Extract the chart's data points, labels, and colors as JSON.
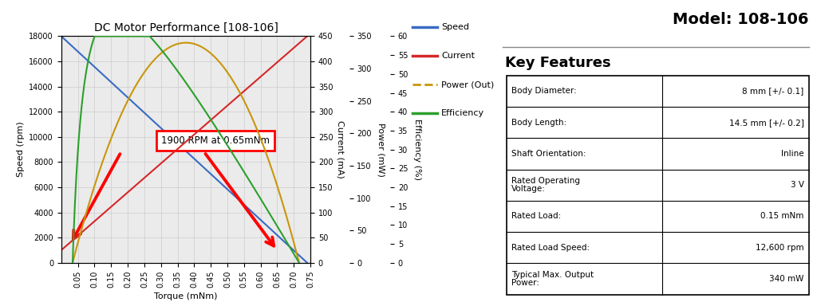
{
  "title": "DC Motor Performance [108-106]",
  "model": "Model: 108-106",
  "key_features_title": "Key Features",
  "xlabel": "Torque (mNm)",
  "ylabel_speed": "Speed (rpm)",
  "ylabel_current": "Current (mA)",
  "ylabel_power": "Power (mW)",
  "ylabel_efficiency": "Efficiency (%)",
  "torque_stall": 0.74,
  "no_load_speed": 18000,
  "stall_current": 450,
  "peak_power": 340,
  "peak_efficiency": 60,
  "speed_color": "#3a6bc4",
  "current_color": "#d62728",
  "power_color": "#c8960c",
  "efficiency_color": "#2ca02c",
  "annotation_text": "1900 RPM at 0.65mNm",
  "legend_labels": [
    "Speed",
    "Current",
    "Power (Out)",
    "Efficiency"
  ],
  "table_rows": [
    [
      "Body Diameter:",
      "8 mm [+/- 0.1]"
    ],
    [
      "Body Length:",
      "14.5 mm [+/- 0.2]"
    ],
    [
      "Shaft Orientation:",
      "Inline"
    ],
    [
      "Rated Operating\nVoltage:",
      "3 V"
    ],
    [
      "Rated Load:",
      "0.15 mNm"
    ],
    [
      "Rated Load Speed:",
      "12,600 rpm"
    ],
    [
      "Typical Max. Output\nPower:",
      "340 mW"
    ]
  ],
  "bg_color": "#ffffff",
  "grid_color": "#cccccc",
  "chart_bg": "#ebebeb"
}
